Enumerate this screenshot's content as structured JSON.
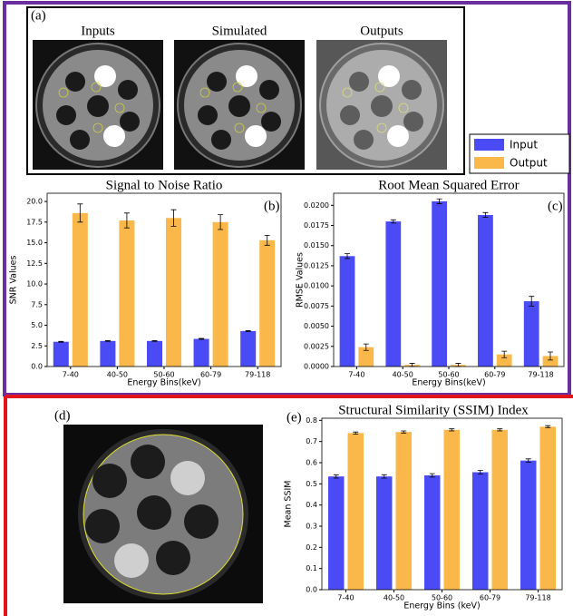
{
  "panel_a": {
    "label": "(a)",
    "titles": [
      "Inputs",
      "Simulated",
      "Outputs"
    ]
  },
  "panel_d": {
    "label": "(d)"
  },
  "chart_data": [
    {
      "type": "bar",
      "panel_label": "(b)",
      "title": "Signal to Noise Ratio",
      "xlabel": "Energy Bins(keV)",
      "ylabel": "SNR Values",
      "categories": [
        "7-40",
        "40-50",
        "50-60",
        "60-79",
        "79-118"
      ],
      "series": [
        {
          "name": "Input",
          "color": "#4b4bf5",
          "values": [
            3.0,
            3.1,
            3.1,
            3.35,
            4.3
          ],
          "errors": [
            0.05,
            0.05,
            0.05,
            0.05,
            0.05
          ]
        },
        {
          "name": "Output",
          "color": "#fbb84a",
          "values": [
            18.6,
            17.7,
            18.0,
            17.5,
            15.3
          ],
          "errors": [
            1.1,
            0.9,
            1.0,
            0.9,
            0.6
          ]
        }
      ],
      "ylim": [
        0,
        21
      ],
      "yticks": [
        {
          "value": 0,
          "label": "0.0"
        },
        2.5,
        {
          "value": 5,
          "label": "5.0"
        },
        7.5,
        {
          "value": 10,
          "label": "10.0"
        },
        12.5,
        {
          "value": 15,
          "label": "15.0"
        },
        17.5,
        {
          "value": 20,
          "label": "20.0"
        }
      ]
    },
    {
      "type": "bar",
      "panel_label": "(c)",
      "title": "Root Mean Squared Error",
      "xlabel": "Energy Bins(keV)",
      "ylabel": "RMSE Values",
      "categories": [
        "7-40",
        "40-50",
        "50-60",
        "60-79",
        "79-118"
      ],
      "series": [
        {
          "color": "#4b4bf5",
          "values": [
            0.0137,
            0.018,
            0.0205,
            0.0188,
            0.0081
          ],
          "errors": [
            0.0003,
            0.0002,
            0.0003,
            0.0003,
            0.0006
          ]
        },
        {
          "color": "#fbb84a",
          "values": [
            0.0024,
            0.0002,
            0.0002,
            0.0015,
            0.0013
          ],
          "errors": [
            0.0004,
            0.0002,
            0.0002,
            0.0004,
            0.0005
          ]
        }
      ],
      "ylim": [
        0,
        0.0215
      ],
      "yticks": [
        {
          "value": 0,
          "label": "0.0000"
        },
        0.0025,
        {
          "value": 0.005,
          "label": "0.0050"
        },
        0.0075,
        {
          "value": 0.01,
          "label": "0.0100"
        },
        0.0125,
        {
          "value": 0.015,
          "label": "0.0150"
        },
        0.0175,
        {
          "value": 0.02,
          "label": "0.0200"
        }
      ]
    },
    {
      "type": "bar",
      "panel_label": "(e)",
      "title": "Structural Similarity (SSIM) Index",
      "xlabel": "Energy Bins (keV)",
      "ylabel": "Mean SSIM",
      "categories": [
        "7-40",
        "40-50",
        "50-60",
        "60-79",
        "79-118"
      ],
      "series": [
        {
          "color": "#4b4bf5",
          "values": [
            0.535,
            0.535,
            0.54,
            0.555,
            0.61
          ],
          "errors": [
            0.008,
            0.008,
            0.008,
            0.008,
            0.008
          ]
        },
        {
          "color": "#fbb84a",
          "values": [
            0.74,
            0.745,
            0.755,
            0.755,
            0.77
          ],
          "errors": [
            0.005,
            0.005,
            0.005,
            0.005,
            0.005
          ]
        }
      ],
      "ylim": [
        0,
        0.81
      ],
      "yticks": [
        {
          "value": 0,
          "label": "0.0"
        },
        0.1,
        0.2,
        0.3,
        0.4,
        0.5,
        0.6,
        0.7,
        0.8
      ]
    }
  ]
}
